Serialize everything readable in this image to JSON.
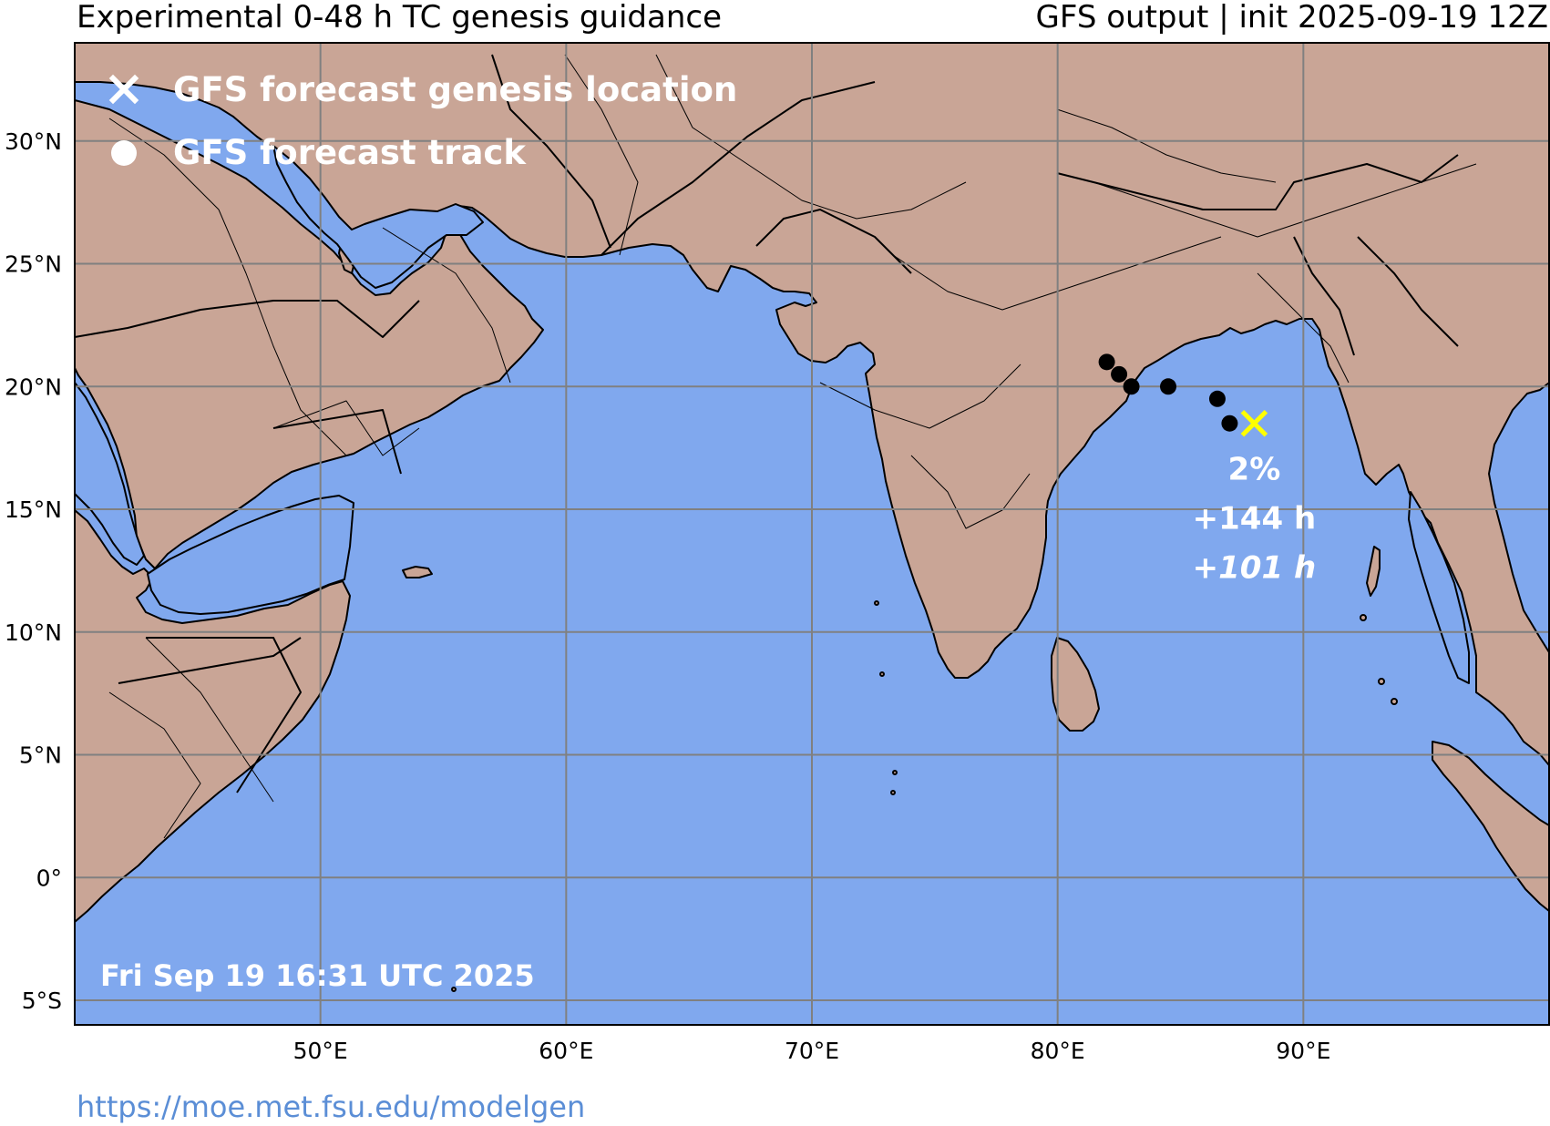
{
  "header": {
    "title_left": "Experimental 0-48 h TC genesis guidance",
    "title_right": "GFS output | init 2025-09-19 12Z"
  },
  "footer": {
    "url": "https://moe.met.fsu.edu/modelgen"
  },
  "map": {
    "extent_lon": [
      40,
      100
    ],
    "extent_lat": [
      -6,
      34
    ],
    "colors": {
      "ocean": "#80a8ee",
      "land": "#c9a596",
      "coast": "#000000",
      "grid": "#808080",
      "genesis_marker": "#ffff00",
      "track_marker": "#000000",
      "text": "#ffffff"
    },
    "lat_ticks": [
      {
        "lat": 30,
        "label": "30°N"
      },
      {
        "lat": 25,
        "label": "25°N"
      },
      {
        "lat": 20,
        "label": "20°N"
      },
      {
        "lat": 15,
        "label": "15°N"
      },
      {
        "lat": 10,
        "label": "10°N"
      },
      {
        "lat": 5,
        "label": "5°N"
      },
      {
        "lat": 0,
        "label": "0°"
      },
      {
        "lat": -5,
        "label": "5°S"
      }
    ],
    "lon_ticks": [
      {
        "lon": 50,
        "label": "50°E"
      },
      {
        "lon": 60,
        "label": "60°E"
      },
      {
        "lon": 70,
        "label": "70°E"
      },
      {
        "lon": 80,
        "label": "80°E"
      },
      {
        "lon": 90,
        "label": "90°E"
      }
    ],
    "legend": {
      "genesis_label": "GFS forecast genesis location",
      "track_label": "GFS forecast track",
      "genesis_icon": "x-mark-icon",
      "track_icon": "dot-icon"
    },
    "track_points": [
      {
        "lon": 82.0,
        "lat": 21.0
      },
      {
        "lon": 82.5,
        "lat": 20.5
      },
      {
        "lon": 83.0,
        "lat": 20.0
      },
      {
        "lon": 84.5,
        "lat": 20.0
      },
      {
        "lon": 86.5,
        "lat": 19.5
      },
      {
        "lon": 87.0,
        "lat": 18.5
      }
    ],
    "genesis": {
      "lon": 88.0,
      "lat": 18.5,
      "probability": "2%",
      "lead_time": "+144 h",
      "lead_time_italic": "101 h",
      "lead_time_italic_prefix": "+"
    },
    "timestamp": "Fri Sep 19 16:31 UTC 2025"
  }
}
